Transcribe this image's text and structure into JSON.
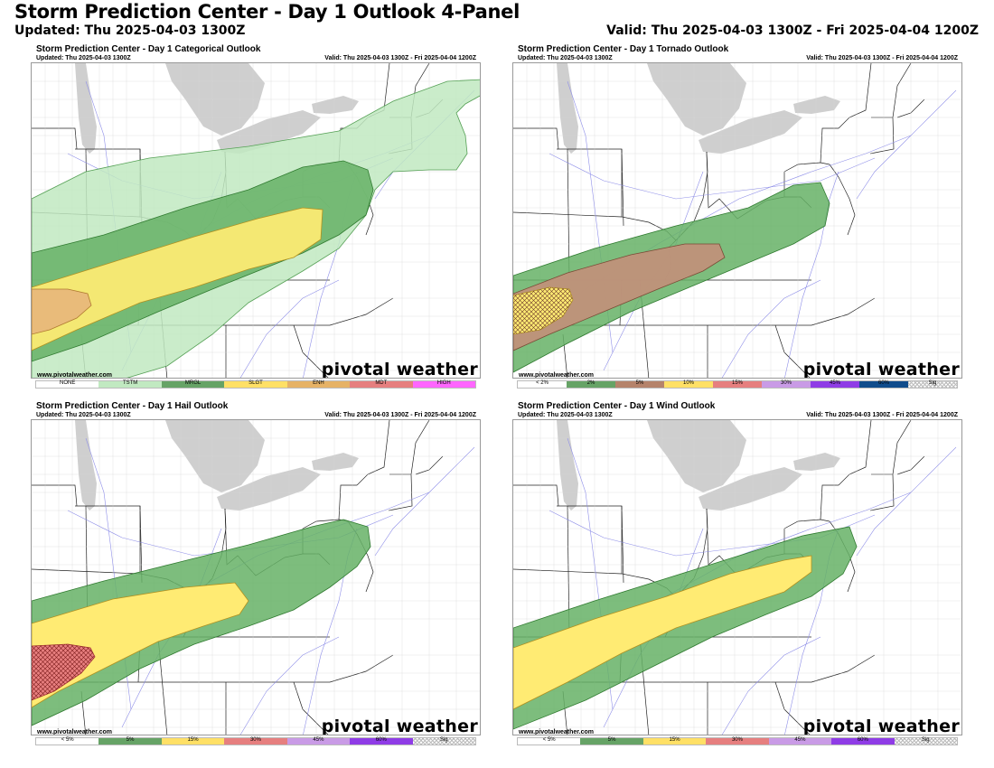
{
  "header": {
    "title": "Storm Prediction Center - Day 1 Outlook 4-Panel",
    "updated": "Updated: Thu 2025-04-03 1300Z",
    "valid": "Valid: Thu 2025-04-03 1300Z - Fri 2025-04-04 1200Z"
  },
  "panels": [
    {
      "title": "Storm Prediction Center - Day 1 Categorical Outlook",
      "updated": "Updated: Thu 2025-04-03 1300Z",
      "valid": "Valid: Thu 2025-04-03 1300Z - Fri 2025-04-04 1200Z",
      "watermark": "www.pivotalweather.com",
      "brand": "pivotal weather",
      "legend": [
        {
          "label": "NONE",
          "color": "#ffffff"
        },
        {
          "label": "TSTM",
          "color": "#c1e9c1"
        },
        {
          "label": "MRGL",
          "color": "#66a366"
        },
        {
          "label": "SLGT",
          "color": "#ffe066"
        },
        {
          "label": "ENH",
          "color": "#e6b266"
        },
        {
          "label": "MDT",
          "color": "#e67f7f"
        },
        {
          "label": "HIGH",
          "color": "#ff66ff"
        }
      ]
    },
    {
      "title": "Storm Prediction Center - Day 1 Tornado Outlook",
      "updated": "Updated: Thu 2025-04-03 1300Z",
      "valid": "Valid: Thu 2025-04-03 1300Z - Fri 2025-04-04 1200Z",
      "watermark": "www.pivotalweather.com",
      "brand": "pivotal weather",
      "legend": [
        {
          "label": "< 2%",
          "color": "#ffffff"
        },
        {
          "label": "2%",
          "color": "#66a366"
        },
        {
          "label": "5%",
          "color": "#b5836b"
        },
        {
          "label": "10%",
          "color": "#ffe066"
        },
        {
          "label": "15%",
          "color": "#e67f7f"
        },
        {
          "label": "30%",
          "color": "#c99be6"
        },
        {
          "label": "45%",
          "color": "#8f3ce6"
        },
        {
          "label": "60%",
          "color": "#104c8c"
        },
        {
          "label": "Sig",
          "color": "hatch"
        }
      ]
    },
    {
      "title": "Storm Prediction Center - Day 1 Hail Outlook",
      "updated": "Updated: Thu 2025-04-03 1300Z",
      "valid": "Valid: Thu 2025-04-03 1300Z - Fri 2025-04-04 1200Z",
      "watermark": "www.pivotalweather.com",
      "brand": "pivotal weather",
      "legend": [
        {
          "label": "< 5%",
          "color": "#ffffff"
        },
        {
          "label": "5%",
          "color": "#66a366"
        },
        {
          "label": "15%",
          "color": "#ffe066"
        },
        {
          "label": "30%",
          "color": "#e67f7f"
        },
        {
          "label": "45%",
          "color": "#c99be6"
        },
        {
          "label": "60%",
          "color": "#8f3ce6"
        },
        {
          "label": "Sig",
          "color": "hatch"
        }
      ]
    },
    {
      "title": "Storm Prediction Center - Day 1 Wind Outlook",
      "updated": "Updated: Thu 2025-04-03 1300Z",
      "valid": "Valid: Thu 2025-04-03 1300Z - Fri 2025-04-04 1200Z",
      "watermark": "www.pivotalweather.com",
      "brand": "pivotal weather",
      "legend": [
        {
          "label": "< 5%",
          "color": "#ffffff"
        },
        {
          "label": "5%",
          "color": "#66a366"
        },
        {
          "label": "15%",
          "color": "#ffe066"
        },
        {
          "label": "30%",
          "color": "#e67f7f"
        },
        {
          "label": "45%",
          "color": "#c99be6"
        },
        {
          "label": "60%",
          "color": "#8f3ce6"
        },
        {
          "label": "Sig",
          "color": "hatch"
        }
      ]
    }
  ]
}
